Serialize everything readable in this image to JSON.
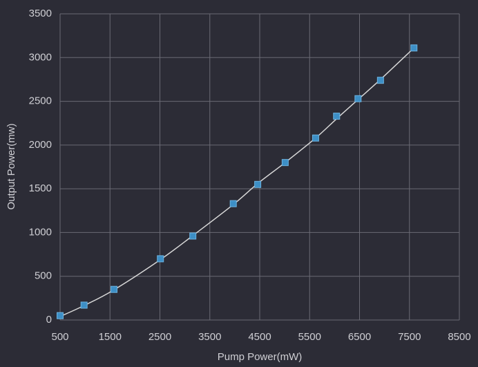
{
  "chart_data": {
    "type": "scatter",
    "xlabel": "Pump Power(mW)",
    "ylabel": "Output Power(mw)",
    "xlim": [
      500,
      8500
    ],
    "xticks": [
      500,
      1500,
      2500,
      3500,
      4500,
      5500,
      6500,
      7500,
      8500
    ],
    "ylim": [
      0,
      3500
    ],
    "yticks": [
      0,
      500,
      1000,
      1500,
      2000,
      2500,
      3000,
      3500
    ],
    "grid": true,
    "series": [
      {
        "type": "scatter",
        "color": "#3d8fc6",
        "x": [
          500,
          980,
          1580,
          2510,
          3160,
          3970,
          4460,
          5010,
          5620,
          6040,
          6470,
          6920,
          7590
        ],
        "values": [
          50,
          170,
          350,
          700,
          960,
          1330,
          1550,
          1800,
          2080,
          2330,
          2530,
          2740,
          3110
        ]
      },
      {
        "type": "line",
        "color": "#d8d8d8",
        "x": [
          500,
          980,
          1580,
          2510,
          3160,
          3970,
          4460,
          5010,
          5620,
          6040,
          6470,
          6920,
          7590
        ],
        "values": [
          40,
          165,
          345,
          690,
          965,
          1320,
          1560,
          1800,
          2080,
          2300,
          2520,
          2750,
          3110
        ]
      }
    ]
  }
}
